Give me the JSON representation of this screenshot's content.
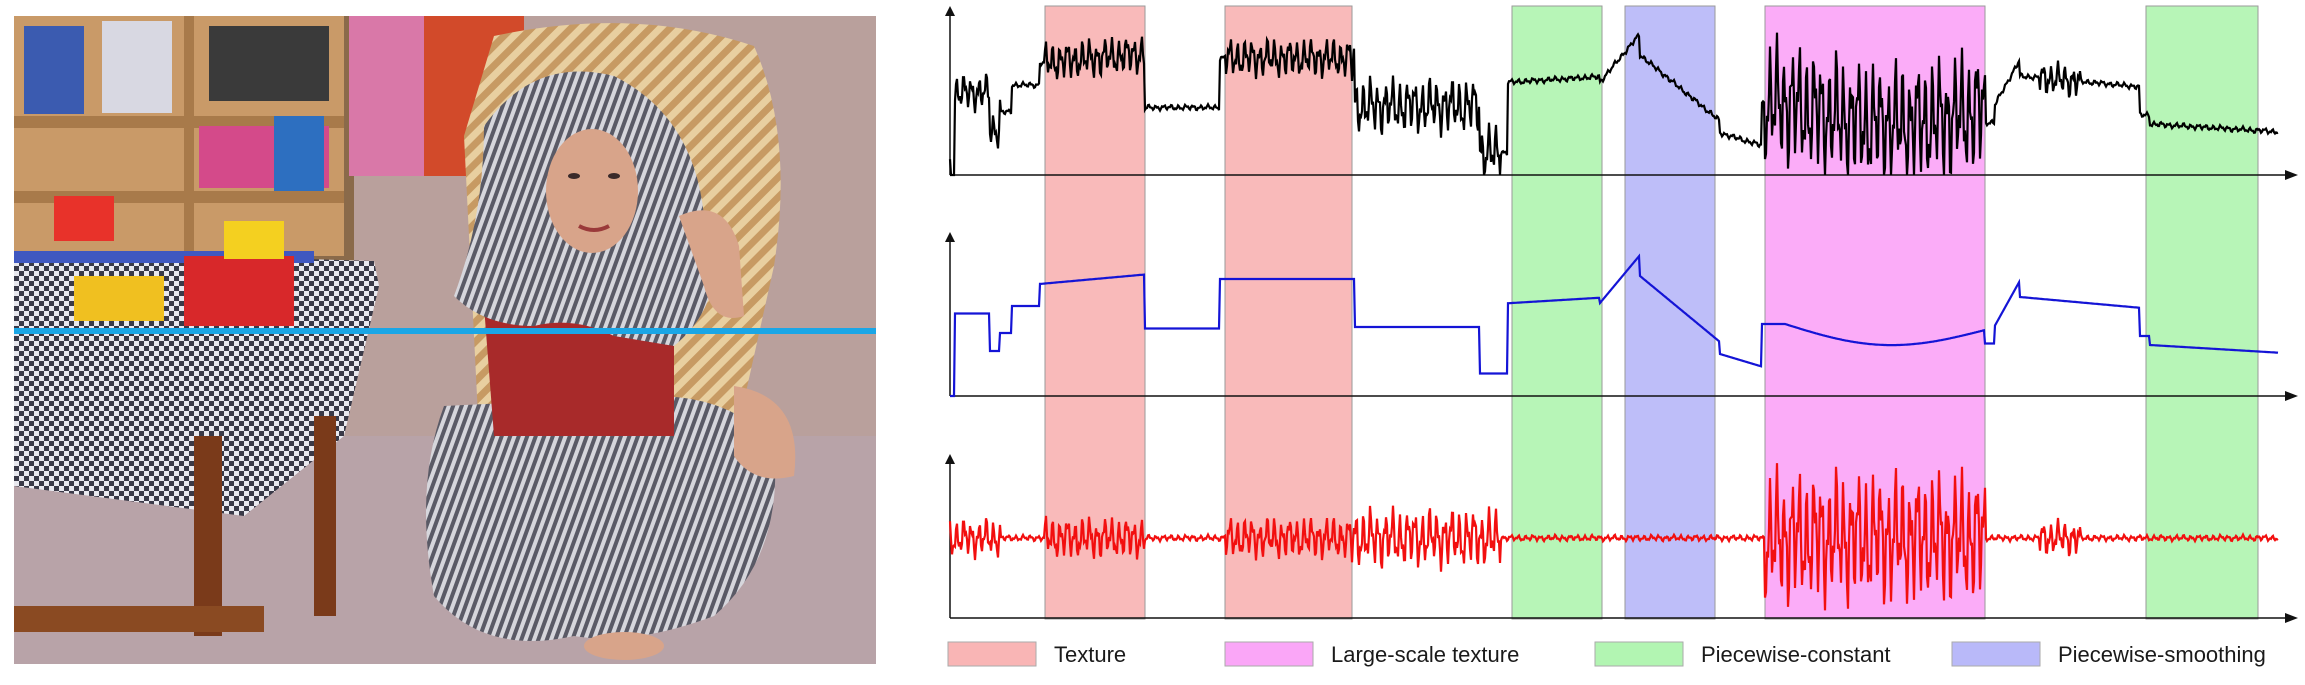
{
  "legend": {
    "items": [
      {
        "label": "Texture",
        "color": "#f7a3a3"
      },
      {
        "label": "Large-scale texture",
        "color": "#f990f5"
      },
      {
        "label": "Piecewise-constant",
        "color": "#9ff29f"
      },
      {
        "label": "Piecewise-smoothing",
        "color": "#a8a8f7"
      }
    ]
  },
  "signals": [
    {
      "role": "original",
      "color": "#000000"
    },
    {
      "role": "structure",
      "color": "#1414d6"
    },
    {
      "role": "texture",
      "color": "#f20f0f"
    }
  ],
  "scanline_color": "#1aa6e6"
}
